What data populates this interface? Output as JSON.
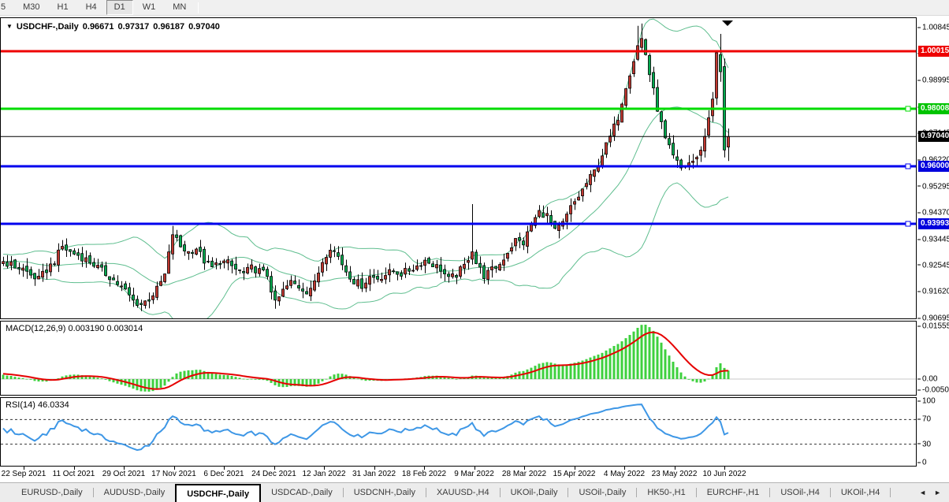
{
  "toolbar": {
    "timeframes": [
      {
        "label": "5",
        "name": "timeframe-m15-partial",
        "partial": true
      },
      {
        "label": "M30",
        "name": "timeframe-m30"
      },
      {
        "label": "H1",
        "name": "timeframe-h1"
      },
      {
        "label": "H4",
        "name": "timeframe-h4"
      },
      {
        "label": "D1",
        "name": "timeframe-d1",
        "active": true
      },
      {
        "label": "W1",
        "name": "timeframe-w1"
      },
      {
        "label": "MN",
        "name": "timeframe-mn"
      }
    ]
  },
  "window": {
    "title": {
      "symbol": "USDCHF-,Daily",
      "open": "0.96671",
      "high": "0.97317",
      "low": "0.96187",
      "close": "0.97040"
    },
    "macd_label": "MACD(12,26,9) 0.003190 0.003014",
    "rsi_label": "RSI(14) 46.0334"
  },
  "chart_data": {
    "type": "candlestick",
    "symbol": "USDCHF-,Daily",
    "timeframe": "D1",
    "last_bar": {
      "open": 0.96671,
      "high": 0.97317,
      "low": 0.96187,
      "close": 0.9704
    },
    "price_axis_ticks": [
      "1.00845",
      "0.99920",
      "0.98995",
      "0.98070",
      "0.97145",
      "0.96220",
      "0.95295",
      "0.94370",
      "0.93445",
      "0.92545",
      "0.91620",
      "0.90695"
    ],
    "macd_axis_ticks": {
      "top": "0.01555",
      "zero": "0.00",
      "bottom": "-0.00507"
    },
    "rsi_axis_ticks": [
      100,
      70,
      30,
      0
    ],
    "rsi_dashed_levels": [
      70,
      30
    ],
    "date_labels": [
      "22 Sep 2021",
      "11 Oct 2021",
      "29 Oct 2021",
      "17 Nov 2021",
      "6 Dec 2021",
      "24 Dec 2021",
      "12 Jan 2022",
      "31 Jan 2022",
      "18 Feb 2022",
      "9 Mar 2022",
      "28 Mar 2022",
      "15 Apr 2022",
      "4 May 2022",
      "23 May 2022",
      "10 Jun 2022"
    ],
    "horizontal_lines": [
      {
        "price": 1.00015,
        "label": "1.00015",
        "color": "#ee0000",
        "tag_bg": "#ee0000",
        "tag_fg": "#ffffff",
        "width": 3,
        "handle": false
      },
      {
        "price": 0.98008,
        "label": "0.98008",
        "color": "#00dc00",
        "tag_bg": "#00c400",
        "tag_fg": "#ffffff",
        "width": 3,
        "handle": true
      },
      {
        "price": 0.9704,
        "label": "0.97040",
        "color": "#000000",
        "tag_bg": "#000000",
        "tag_fg": "#ffffff",
        "width": 1,
        "handle": false,
        "current_price": true
      },
      {
        "price": 0.96,
        "label": "0.96000",
        "color": "#0000ee",
        "tag_bg": "#0000dd",
        "tag_fg": "#ffffff",
        "width": 3,
        "handle": true
      },
      {
        "price": 0.93993,
        "label": "0.93993",
        "color": "#0000ee",
        "tag_bg": "#0000dd",
        "tag_fg": "#ffffff",
        "width": 3,
        "handle": true
      }
    ],
    "indicators": {
      "bollinger": {
        "period": 20,
        "deviation": 2
      },
      "macd": {
        "fast": 12,
        "slow": 26,
        "signal": 9,
        "value": 0.00319,
        "signal_value": 0.003014
      },
      "rsi": {
        "period": 14,
        "value": 46.0334
      }
    },
    "colors": {
      "bull": "#c0372f",
      "bear": "#00a94e",
      "wick": "#000000",
      "bollinger": "#5fbe8f",
      "macd_hist": "#3ed03e",
      "macd_signal": "#e60000",
      "rsi_line": "#3e97e6",
      "current_price_line": "#000000"
    },
    "series_generation": {
      "lead_in_bars": 40,
      "visible_bars": 185,
      "noise": {
        "close": 0.0013,
        "open": 0.0008,
        "wick": 0.0028
      },
      "anchors": [
        [
          -40,
          0.9175
        ],
        [
          -28,
          0.9225
        ],
        [
          -16,
          0.9255
        ],
        [
          -6,
          0.928
        ],
        [
          0,
          0.9268
        ],
        [
          3,
          0.925
        ],
        [
          5,
          0.9242
        ],
        [
          7,
          0.922
        ],
        [
          9,
          0.9205
        ],
        [
          11,
          0.9238
        ],
        [
          13,
          0.927
        ],
        [
          15,
          0.932
        ],
        [
          17,
          0.93
        ],
        [
          19,
          0.929
        ],
        [
          21,
          0.9275
        ],
        [
          23,
          0.9258
        ],
        [
          25,
          0.9235
        ],
        [
          27,
          0.9215
        ],
        [
          29,
          0.919
        ],
        [
          31,
          0.9165
        ],
        [
          33,
          0.913
        ],
        [
          35,
          0.9118
        ],
        [
          37,
          0.9138
        ],
        [
          39,
          0.917
        ],
        [
          41,
          0.922
        ],
        [
          43,
          0.9365
        ],
        [
          45,
          0.932
        ],
        [
          47,
          0.93
        ],
        [
          49,
          0.9315
        ],
        [
          51,
          0.927
        ],
        [
          53,
          0.9245
        ],
        [
          55,
          0.9268
        ],
        [
          57,
          0.9262
        ],
        [
          59,
          0.924
        ],
        [
          61,
          0.9225
        ],
        [
          63,
          0.9245
        ],
        [
          65,
          0.9235
        ],
        [
          67,
          0.922
        ],
        [
          69,
          0.912
        ],
        [
          71,
          0.9165
        ],
        [
          73,
          0.9195
        ],
        [
          75,
          0.918
        ],
        [
          77,
          0.9165
        ],
        [
          79,
          0.919
        ],
        [
          81,
          0.927
        ],
        [
          83,
          0.932
        ],
        [
          85,
          0.9285
        ],
        [
          87,
          0.9235
        ],
        [
          89,
          0.92
        ],
        [
          91,
          0.9185
        ],
        [
          93,
          0.9215
        ],
        [
          95,
          0.921
        ],
        [
          97,
          0.9222
        ],
        [
          99,
          0.9235
        ],
        [
          101,
          0.9225
        ],
        [
          103,
          0.9238
        ],
        [
          105,
          0.9252
        ],
        [
          107,
          0.9272
        ],
        [
          109,
          0.9258
        ],
        [
          111,
          0.9242
        ],
        [
          113,
          0.9205
        ],
        [
          115,
          0.9222
        ],
        [
          117,
          0.9252
        ],
        [
          119,
          0.931
        ],
        [
          120,
          0.9262
        ],
        [
          122,
          0.9218
        ],
        [
          124,
          0.9238
        ],
        [
          126,
          0.9258
        ],
        [
          128,
          0.9302
        ],
        [
          130,
          0.9342
        ],
        [
          132,
          0.9332
        ],
        [
          134,
          0.9396
        ],
        [
          136,
          0.944
        ],
        [
          138,
          0.9428
        ],
        [
          140,
          0.9372
        ],
        [
          142,
          0.94
        ],
        [
          144,
          0.9455
        ],
        [
          146,
          0.9495
        ],
        [
          148,
          0.954
        ],
        [
          150,
          0.9582
        ],
        [
          152,
          0.9642
        ],
        [
          154,
          0.9702
        ],
        [
          156,
          0.9772
        ],
        [
          158,
          0.9882
        ],
        [
          160,
          0.9972
        ],
        [
          161,
          1.002
        ],
        [
          162,
          1.0045
        ],
        [
          163,
          0.9992
        ],
        [
          164,
          0.9922
        ],
        [
          166,
          0.9802
        ],
        [
          168,
          0.9692
        ],
        [
          170,
          0.9632
        ],
        [
          172,
          0.9592
        ],
        [
          174,
          0.9612
        ],
        [
          176,
          0.9625
        ],
        [
          178,
          0.9702
        ],
        [
          180,
          0.9842
        ],
        [
          181,
          0.9988
        ],
        [
          183,
          0.9657
        ],
        [
          184,
          0.9704
        ]
      ],
      "overrides": {
        "43": {
          "h": 0.9392
        },
        "69": {
          "l": 0.9103
        },
        "119": {
          "h": 0.9468
        },
        "161": {
          "h": 1.009
        },
        "162": {
          "h": 1.0098
        },
        "182": {
          "o": 0.999,
          "h": 1.0062,
          "l": 0.9895,
          "c": 0.993
        },
        "183": {
          "o": 0.9948,
          "h": 0.9976,
          "l": 0.9631,
          "c": 0.9657
        },
        "184": {
          "o": 0.96671,
          "h": 0.97317,
          "l": 0.96187,
          "c": 0.9704
        }
      }
    }
  },
  "tabs": {
    "items": [
      {
        "label": "EURUSD-,Daily"
      },
      {
        "label": "AUDUSD-,Daily"
      },
      {
        "label": "USDCHF-,Daily",
        "active": true
      },
      {
        "label": "USDCAD-,Daily"
      },
      {
        "label": "USDCNH-,Daily"
      },
      {
        "label": "XAUUSD-,H4"
      },
      {
        "label": "UKOil-,Daily"
      },
      {
        "label": "USOil-,Daily"
      },
      {
        "label": "HK50-,H1"
      },
      {
        "label": "EURCHF-,H1"
      },
      {
        "label": "USOil-,H4"
      },
      {
        "label": "UKOil-,H4"
      }
    ],
    "nav_left": "◄",
    "nav_right": "►"
  }
}
